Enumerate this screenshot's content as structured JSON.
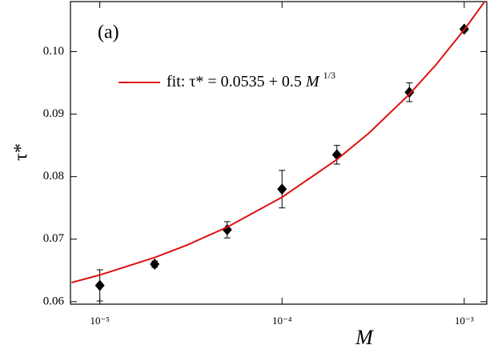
{
  "chart_data": {
    "type": "scatter",
    "annotation": "(a)",
    "x_label": "M",
    "y_label": "τ*",
    "log_x": true,
    "xlim": [
      6.9e-06,
      0.00133
    ],
    "ylim": [
      0.0596,
      0.108
    ],
    "xticks": [
      {
        "value": 1e-05,
        "label": "10⁻⁵"
      },
      {
        "value": 0.0001,
        "label": "10⁻⁴"
      },
      {
        "value": 0.001,
        "label": "10⁻³"
      }
    ],
    "yticks": [
      0.06,
      0.07,
      0.08,
      0.09,
      {
        "value": 0.1,
        "label": "0.10"
      }
    ],
    "series": [
      {
        "type": "scatter",
        "color": "#000000",
        "x": [
          1e-05,
          2e-05,
          5e-05,
          0.0001,
          0.0002,
          0.0005,
          0.001
        ],
        "values": [
          0.0626,
          0.066,
          0.0715,
          0.078,
          0.0835,
          0.0935,
          0.1036
        ],
        "errors": [
          0.0025,
          0.0005,
          0.0013,
          0.003,
          0.0015,
          0.0015,
          0.0003
        ]
      },
      {
        "type": "line",
        "color": "#e01010",
        "name": [
          "fit:  τ* = 0.0535 + 0.5",
          "M",
          "1/3"
        ],
        "x": [
          7e-06,
          1e-05,
          2e-05,
          3e-05,
          5e-05,
          0.0001,
          0.0002,
          0.0003,
          0.0005,
          0.0007,
          0.001,
          0.0013
        ],
        "values": [
          0.06306,
          0.06427,
          0.06707,
          0.06904,
          0.07192,
          0.07671,
          0.08274,
          0.08697,
          0.09319,
          0.0979,
          0.1035,
          0.10807
        ]
      }
    ]
  }
}
